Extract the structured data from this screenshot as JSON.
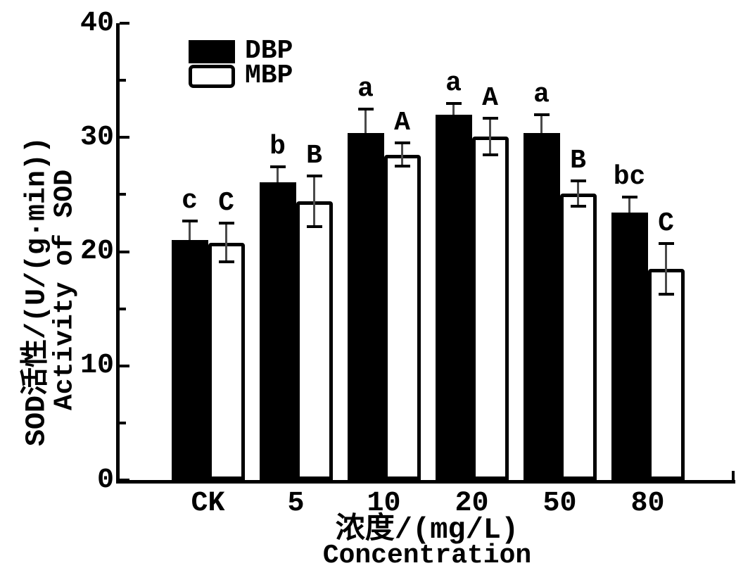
{
  "figure": {
    "background": "#ffffff",
    "ink": "#000000"
  },
  "chart_data": {
    "type": "bar",
    "title": "",
    "categories": [
      "CK",
      "5",
      "10",
      "20",
      "50",
      "80"
    ],
    "series": [
      {
        "name": "DBP",
        "fill": "#000000",
        "values": [
          21.0,
          26.1,
          30.4,
          32.0,
          30.4,
          23.4
        ],
        "errors": [
          1.7,
          1.3,
          2.1,
          1.0,
          1.6,
          1.4
        ],
        "error_direction": "upper-only",
        "sig_letters": [
          "c",
          "b",
          "a",
          "a",
          "a",
          "bc"
        ]
      },
      {
        "name": "MBP",
        "fill": "#ffffff",
        "values": [
          20.8,
          24.4,
          28.5,
          30.1,
          25.1,
          18.5
        ],
        "errors": [
          1.7,
          2.2,
          1.0,
          1.6,
          1.1,
          2.2
        ],
        "error_direction": "both",
        "sig_letters": [
          "C",
          "B",
          "A",
          "A",
          "B",
          "C"
        ]
      }
    ],
    "xlabel_cn": "浓度/(mg/L)",
    "xlabel_en": "Concentration",
    "ylabel_cn": "SOD活性/(U/(g·min))",
    "ylabel_en": "Activity of SOD",
    "ylim": [
      0,
      40
    ],
    "ytick_major": [
      0,
      10,
      20,
      30,
      40
    ],
    "ytick_minor": [
      5,
      15,
      25,
      35
    ],
    "legend_position": "top-left-inside",
    "grid": false
  }
}
